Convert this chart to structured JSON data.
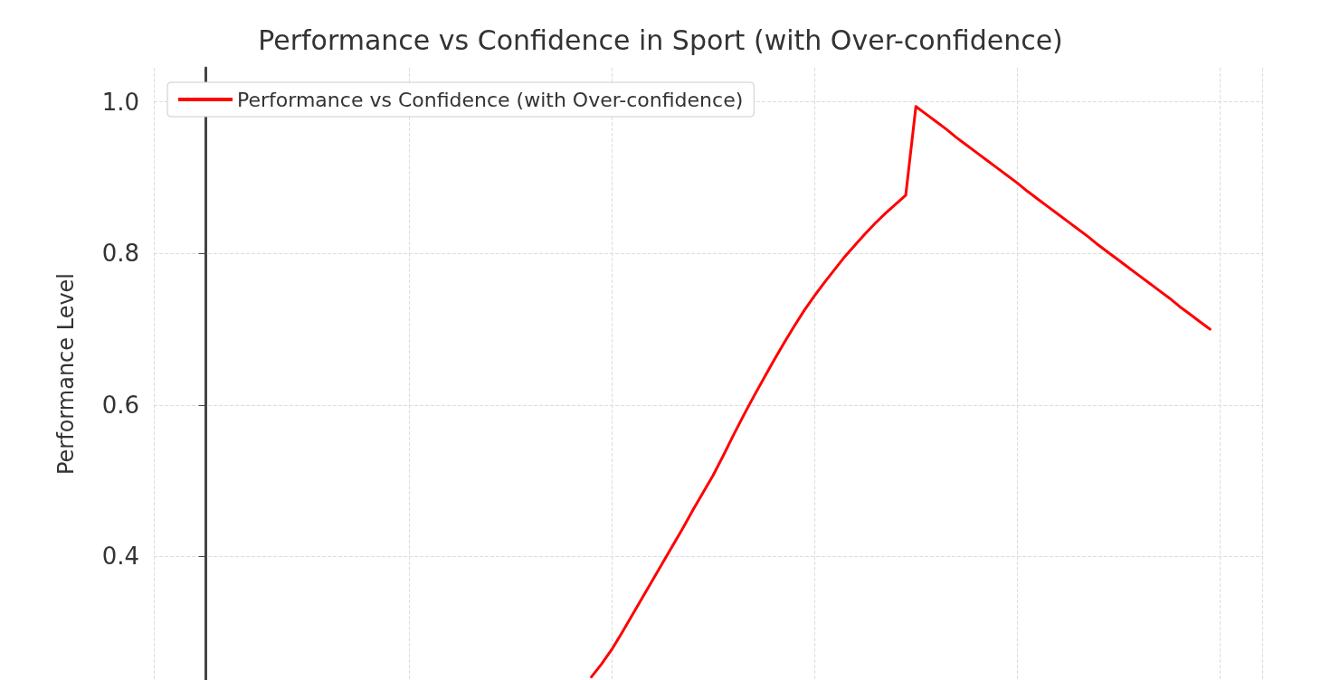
{
  "chart_data": {
    "type": "line",
    "title": "Performance vs Confidence in Sport (with Over-confidence)",
    "ylabel": "Performance Level",
    "categories": [
      null,
      null,
      null,
      null,
      null,
      null,
      null,
      null,
      null,
      null,
      null,
      null,
      null,
      null,
      null,
      null,
      null,
      null,
      null,
      null,
      null,
      null,
      null,
      null,
      null,
      null,
      null,
      null,
      null,
      null,
      null,
      null,
      null,
      null,
      null,
      null,
      null,
      null,
      null,
      null,
      null,
      null,
      null,
      null,
      null,
      null,
      null,
      null,
      null,
      null,
      null,
      null,
      null,
      null,
      null,
      null,
      null,
      null,
      null,
      null,
      null,
      null,
      null,
      null,
      null,
      null,
      null,
      null,
      null,
      null,
      null,
      null,
      null,
      null,
      null,
      null,
      null,
      null,
      null,
      null,
      null,
      null,
      null,
      null,
      null,
      null,
      null,
      null,
      null,
      null,
      null,
      null,
      null,
      null,
      null,
      null,
      null,
      null,
      null,
      null
    ],
    "series": [
      {
        "name": "Performance vs Confidence (with Over-confidence)",
        "color": "#ff0000",
        "values": [
          null,
          null,
          null,
          null,
          null,
          null,
          null,
          null,
          null,
          null,
          null,
          null,
          null,
          null,
          null,
          null,
          null,
          null,
          null,
          null,
          null,
          null,
          null,
          null,
          null,
          null,
          null,
          null,
          null,
          null,
          null,
          null,
          null,
          null,
          null,
          null,
          null,
          null,
          0.241,
          0.258,
          0.277,
          0.299,
          0.322,
          0.345,
          0.368,
          0.391,
          0.414,
          0.437,
          0.461,
          0.484,
          0.507,
          0.533,
          0.56,
          0.586,
          0.611,
          0.635,
          0.659,
          0.682,
          0.704,
          0.725,
          0.744,
          0.762,
          0.779,
          0.796,
          0.811,
          0.826,
          0.84,
          0.853,
          0.865,
          0.877,
          0.994,
          0.984,
          0.974,
          0.964,
          0.953,
          0.943,
          0.933,
          0.923,
          0.913,
          0.903,
          0.893,
          0.882,
          0.872,
          0.862,
          0.852,
          0.842,
          0.832,
          0.822,
          0.811,
          0.801,
          0.791,
          0.781,
          0.771,
          0.761,
          0.751,
          0.741,
          0.73,
          0.72,
          0.71,
          0.7
        ]
      }
    ],
    "ylim": [
      0.237,
      1.045
    ],
    "yticks": [
      {
        "value": 0.4,
        "label": "0.4"
      },
      {
        "value": 0.6,
        "label": "0.6"
      },
      {
        "value": 0.8,
        "label": "0.8"
      },
      {
        "value": 1.0,
        "label": "1.0"
      }
    ],
    "grid": true,
    "legend": "top left",
    "tick_labels": "y",
    "marker": "none",
    "line_style": "solid"
  }
}
